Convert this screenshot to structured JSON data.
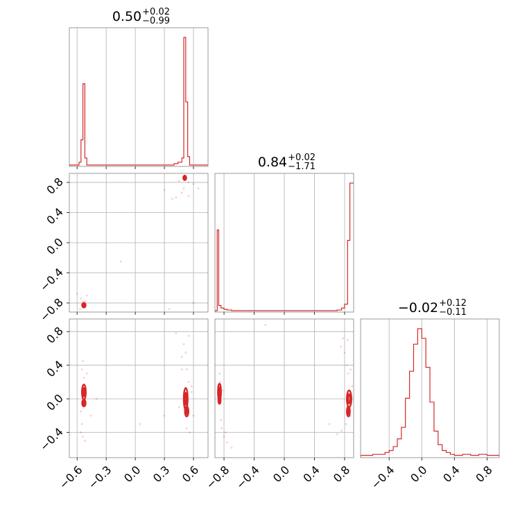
{
  "chart_data": {
    "type": "corner",
    "color": "#d62728",
    "parameters": [
      {
        "range": [
          -0.68,
          0.75
        ],
        "ticks": [
          -0.6,
          -0.3,
          0.0,
          0.3,
          0.6
        ]
      },
      {
        "range": [
          -0.92,
          0.92
        ],
        "ticks": [
          -0.8,
          -0.4,
          0.0,
          0.4,
          0.8
        ]
      },
      {
        "range": [
          -0.7,
          0.95
        ],
        "ticks": [
          -0.4,
          0.0,
          0.4,
          0.8
        ],
        "diag_range": [
          -0.75,
          0.95
        ]
      }
    ],
    "titles": [
      {
        "value": "0.50",
        "plus": "+0.02",
        "minus": "−0.99"
      },
      {
        "value": "0.84",
        "plus": "+0.02",
        "minus": "−1.71"
      },
      {
        "value": "−0.02",
        "plus": "+0.12",
        "minus": "−0.11"
      }
    ],
    "histograms": [
      {
        "edges": [
          -0.68,
          -0.6,
          -0.58,
          -0.56,
          -0.54,
          -0.52,
          -0.5,
          -0.4,
          0.3,
          0.4,
          0.44,
          0.46,
          0.48,
          0.5,
          0.52,
          0.54,
          0.56,
          0.75
        ],
        "counts": [
          0,
          0,
          0.02,
          0.18,
          0.58,
          0.05,
          0,
          0,
          0,
          0.01,
          0.02,
          0.02,
          0.05,
          0.91,
          0.45,
          0.06,
          0
        ]
      },
      {
        "edges": [
          -0.92,
          -0.89,
          -0.87,
          -0.84,
          -0.8,
          -0.76,
          -0.7,
          0.7,
          0.76,
          0.8,
          0.84,
          0.87,
          0.9,
          0.92
        ],
        "counts": [
          0,
          0.62,
          0.04,
          0.02,
          0.01,
          0.005,
          0,
          0.005,
          0.02,
          0.05,
          0.54,
          0.98,
          0.98
        ]
      },
      {
        "edges": [
          -0.75,
          -0.6,
          -0.5,
          -0.45,
          -0.4,
          -0.35,
          -0.3,
          -0.25,
          -0.2,
          -0.15,
          -0.1,
          -0.05,
          0.0,
          0.05,
          0.1,
          0.15,
          0.2,
          0.25,
          0.3,
          0.35,
          0.4,
          0.5,
          0.6,
          0.7,
          0.8,
          0.95
        ],
        "counts": [
          0.005,
          0.01,
          0.01,
          0.02,
          0.03,
          0.05,
          0.09,
          0.15,
          0.3,
          0.44,
          0.58,
          0.66,
          0.61,
          0.46,
          0.28,
          0.13,
          0.06,
          0.03,
          0.02,
          0.01,
          0.005,
          0.01,
          0.005,
          0.01,
          0.005
        ]
      }
    ],
    "scatter": {
      "1_0": [
        [
          0.5,
          0.86
        ],
        [
          0.52,
          0.84
        ],
        [
          0.55,
          0.8
        ],
        [
          0.6,
          0.78
        ],
        [
          0.45,
          0.82
        ],
        [
          0.5,
          0.72
        ],
        [
          0.48,
          0.66
        ],
        [
          0.55,
          0.62
        ],
        [
          0.42,
          0.6
        ],
        [
          0.65,
          0.72
        ],
        [
          0.38,
          0.58
        ],
        [
          0.3,
          0.7
        ],
        [
          -0.54,
          -0.78
        ],
        [
          -0.55,
          -0.82
        ],
        [
          -0.52,
          -0.84
        ],
        [
          -0.56,
          -0.74
        ],
        [
          -0.5,
          -0.7
        ],
        [
          -0.6,
          -0.68
        ],
        [
          -0.57,
          -0.88
        ],
        [
          -0.52,
          -0.78
        ],
        [
          -0.15,
          -0.25
        ],
        [
          0.35,
          -0.88
        ],
        [
          0.6,
          -0.8
        ]
      ],
      "2_0": [
        [
          -0.55,
          0.35
        ],
        [
          -0.54,
          0.45
        ],
        [
          -0.53,
          0.25
        ],
        [
          -0.56,
          -0.15
        ],
        [
          -0.55,
          -0.3
        ],
        [
          -0.54,
          -0.45
        ],
        [
          -0.52,
          -0.5
        ],
        [
          -0.56,
          -0.4
        ],
        [
          -0.5,
          0.3
        ],
        [
          -0.46,
          -0.2
        ],
        [
          -0.4,
          0.0
        ],
        [
          0.55,
          0.75
        ],
        [
          0.5,
          0.65
        ],
        [
          0.52,
          0.55
        ],
        [
          0.48,
          0.5
        ],
        [
          0.53,
          0.35
        ],
        [
          0.55,
          0.2
        ],
        [
          0.53,
          -0.35
        ],
        [
          0.56,
          -0.4
        ],
        [
          0.48,
          0.35
        ],
        [
          0.42,
          0.78
        ],
        [
          0.6,
          -0.2
        ],
        [
          0.58,
          0.15
        ],
        [
          0.45,
          -0.1
        ],
        [
          0.3,
          -0.2
        ],
        [
          0.05,
          -0.3
        ],
        [
          0.58,
          0.08
        ]
      ],
      "2_1": [
        [
          -0.86,
          0.3
        ],
        [
          -0.85,
          0.2
        ],
        [
          -0.84,
          -0.25
        ],
        [
          -0.83,
          -0.35
        ],
        [
          -0.8,
          -0.45
        ],
        [
          -0.76,
          -0.52
        ],
        [
          -0.7,
          -0.58
        ],
        [
          -0.82,
          0.1
        ],
        [
          -0.78,
          -0.4
        ],
        [
          0.84,
          0.7
        ],
        [
          0.78,
          0.72
        ],
        [
          0.8,
          0.55
        ],
        [
          0.83,
          0.4
        ],
        [
          0.85,
          0.3
        ],
        [
          0.82,
          -0.3
        ],
        [
          0.76,
          -0.38
        ],
        [
          0.7,
          -0.42
        ],
        [
          0.6,
          -0.3
        ],
        [
          0.75,
          0.62
        ],
        [
          0.88,
          0.35
        ],
        [
          0.88,
          -0.2
        ],
        [
          -0.25,
          0.88
        ],
        [
          0.9,
          0.15
        ]
      ]
    }
  }
}
